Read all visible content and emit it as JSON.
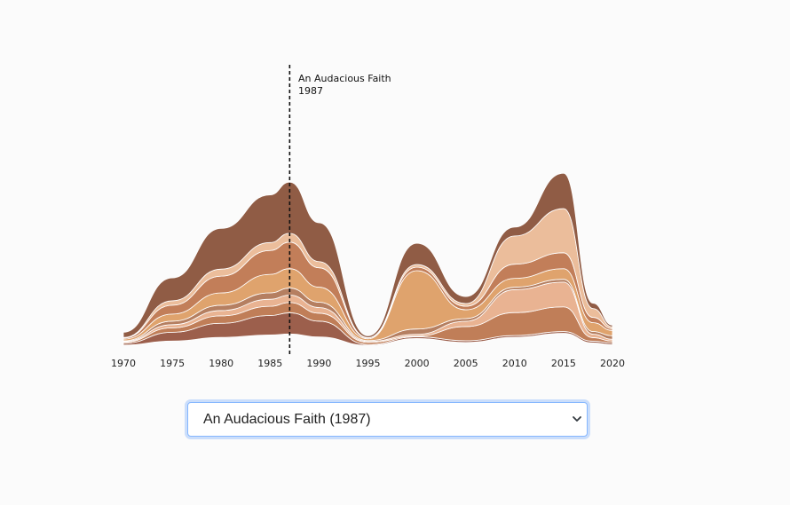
{
  "chart_data": {
    "type": "area",
    "subtype": "streamgraph",
    "x": [
      1970,
      1975,
      1980,
      1985,
      1987,
      1990,
      1995,
      2000,
      2005,
      2010,
      2015,
      2018,
      2020
    ],
    "xlim": [
      1970,
      2020
    ],
    "x_ticks": [
      "1970",
      "1975",
      "1980",
      "1985",
      "1990",
      "1995",
      "2000",
      "2005",
      "2010",
      "2015",
      "2020"
    ],
    "grid": false,
    "legend": "none",
    "series": [
      {
        "color": "#9c5f4c",
        "values": [
          1,
          5,
          8,
          11,
          12,
          9,
          0.5,
          1,
          1,
          1,
          1,
          1,
          1
        ]
      },
      {
        "color": "#c07e58",
        "values": [
          0.6,
          2.5,
          4.2,
          5.2,
          5.8,
          4.5,
          1.2,
          0.4,
          8,
          13,
          14,
          2,
          1
        ]
      },
      {
        "color": "#e9b392",
        "values": [
          0.4,
          1.8,
          3,
          4,
          4.2,
          3.2,
          0.5,
          1,
          3,
          13,
          14,
          2,
          1
        ]
      },
      {
        "color": "#b57f61",
        "values": [
          0.4,
          2,
          3,
          3.6,
          4,
          3,
          0.5,
          3,
          1.5,
          1.4,
          1.6,
          1.5,
          2
        ]
      },
      {
        "color": "#dfa36d",
        "values": [
          1,
          4,
          7,
          10.5,
          11,
          8.5,
          1,
          33,
          5,
          5,
          6,
          5,
          3
        ]
      },
      {
        "color": "#c27e59",
        "values": [
          0.6,
          5,
          9.5,
          13.5,
          15,
          11,
          0.5,
          2,
          2,
          8,
          9,
          3,
          1
        ]
      },
      {
        "color": "#ebbd9b",
        "values": [
          0.3,
          2.5,
          4,
          4.5,
          5,
          3.5,
          0.2,
          1.5,
          1.5,
          16,
          25,
          5,
          1
        ]
      },
      {
        "color": "#905c45",
        "values": [
          3,
          13,
          23,
          27,
          29,
          22,
          1,
          12,
          4,
          5,
          20,
          3,
          1
        ]
      }
    ],
    "marker": {
      "x": 1987,
      "title": "An Audacious Faith",
      "year": "1987"
    }
  },
  "select": {
    "value": "An Audacious Faith (1987)",
    "options": [
      "An Audacious Faith (1987)"
    ]
  },
  "icons": {
    "select_chevron": "chevron-down-icon"
  }
}
